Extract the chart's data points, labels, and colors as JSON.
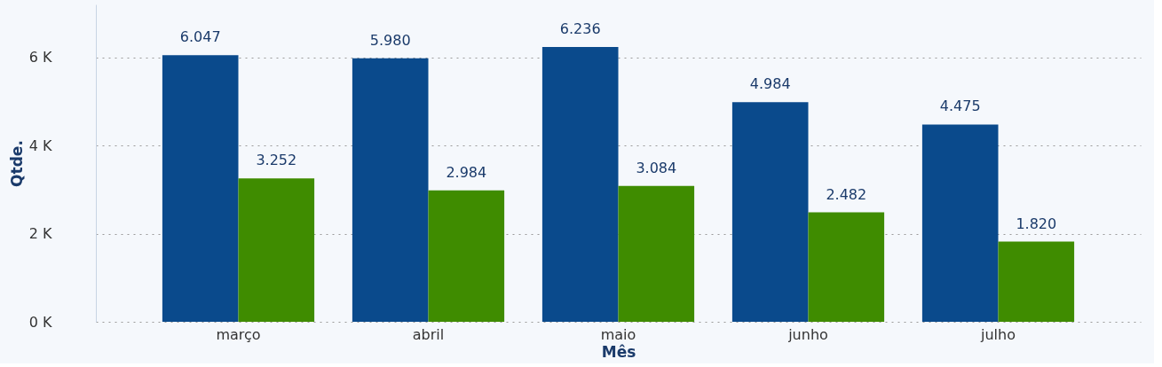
{
  "chart_data": {
    "type": "bar",
    "xlabel": "Mês",
    "ylabel": "Qtde.",
    "categories": [
      "março",
      "abril",
      "maio",
      "junho",
      "julho"
    ],
    "series": [
      {
        "color": "#0a4a8c",
        "values": [
          6047,
          5980,
          6236,
          4984,
          4475
        ],
        "value_labels": [
          "6.047",
          "5.980",
          "6.236",
          "4.984",
          "4.475"
        ]
      },
      {
        "color": "#3f8c00",
        "values": [
          3252,
          2984,
          3084,
          2482,
          1820
        ],
        "value_labels": [
          "3.252",
          "2.984",
          "3.084",
          "2.482",
          "1.820"
        ]
      }
    ],
    "ylim": [
      0,
      7200
    ],
    "yticks": [
      {
        "value": 0,
        "label": "0 K"
      },
      {
        "value": 2000,
        "label": "2 K"
      },
      {
        "value": 4000,
        "label": "4 K"
      },
      {
        "value": 6000,
        "label": "6 K"
      }
    ],
    "grid": "y"
  }
}
